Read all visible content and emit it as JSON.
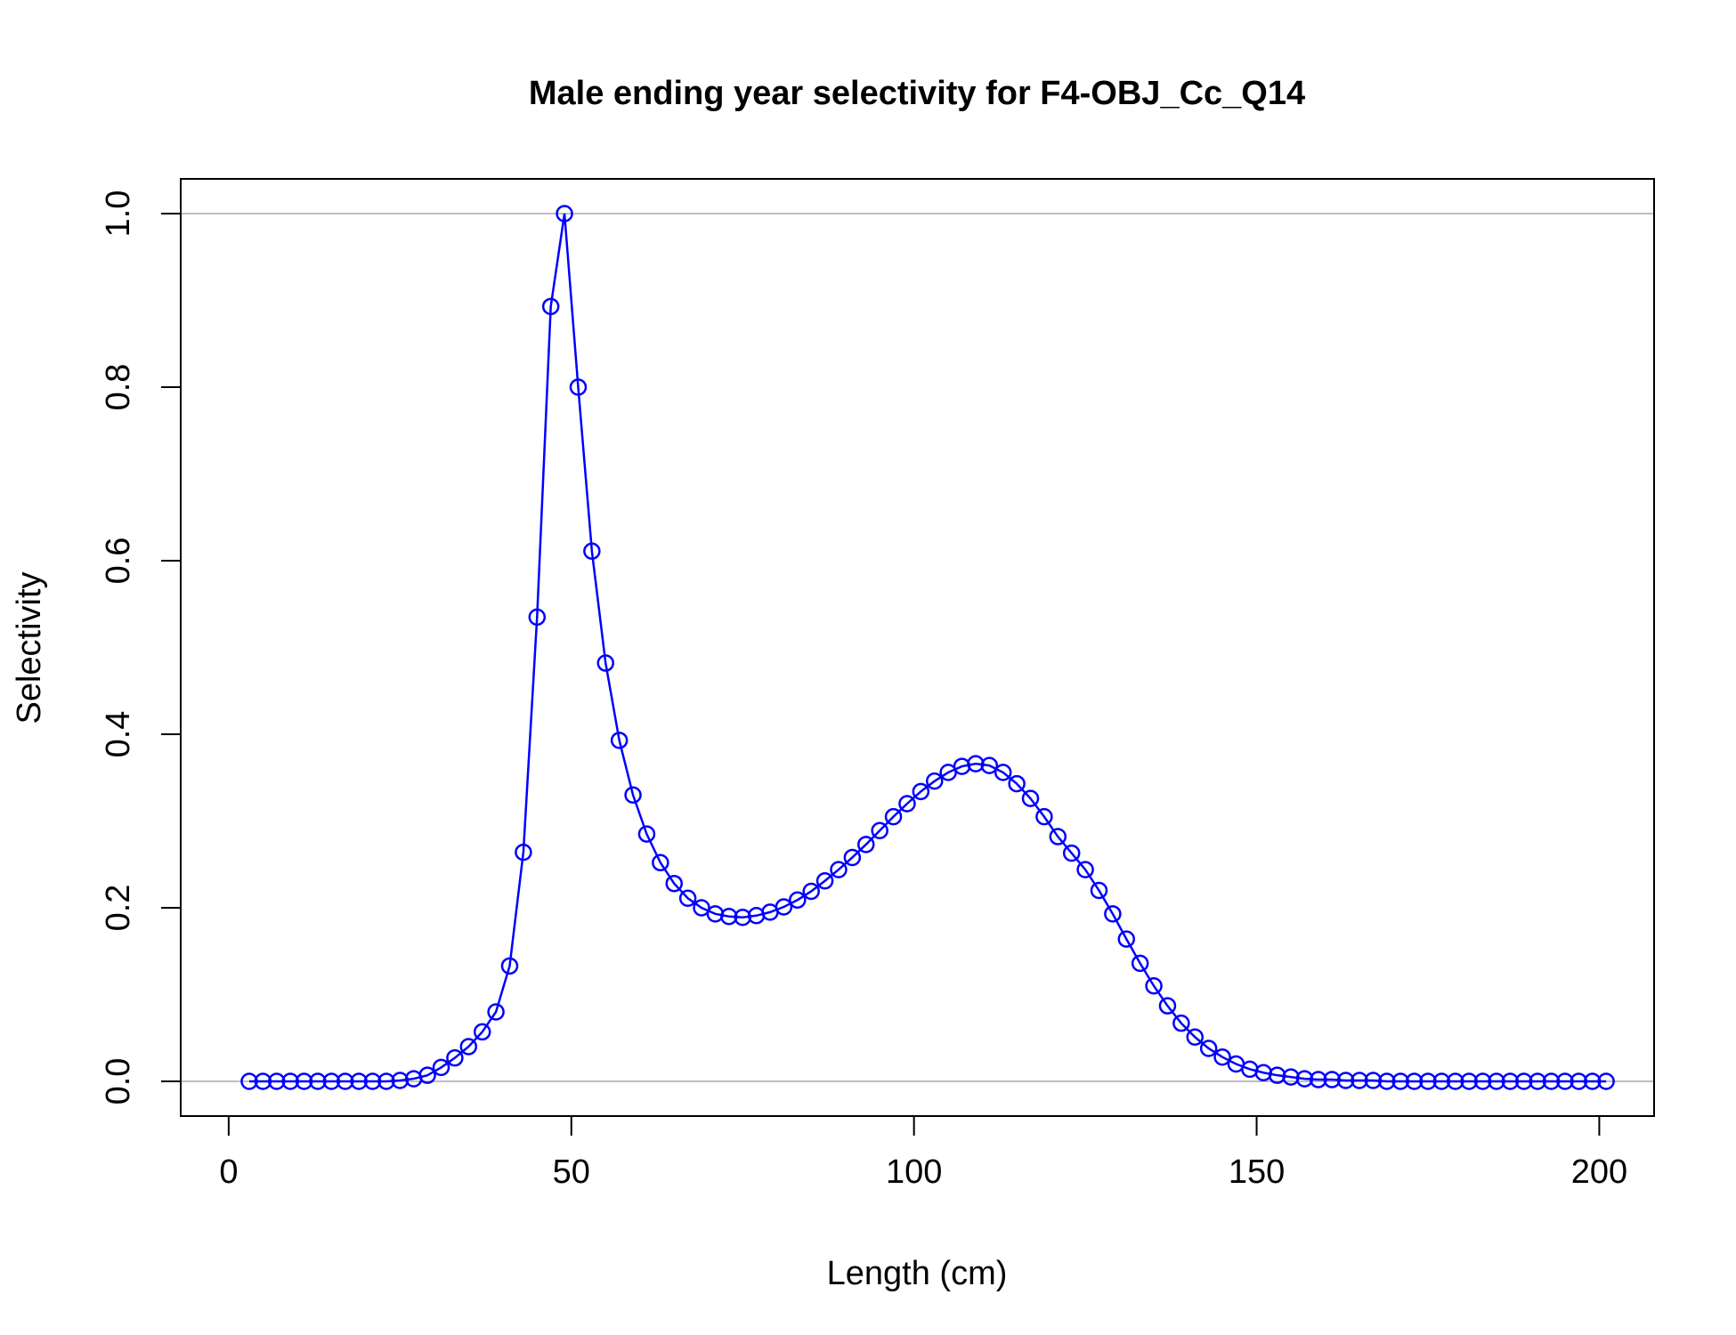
{
  "chart_data": {
    "type": "line",
    "title": "Male ending year selectivity for F4-OBJ_Cc_Q14",
    "xlabel": "Length (cm)",
    "ylabel": "Selectivity",
    "xlim": [
      -7,
      208
    ],
    "ylim": [
      -0.04,
      1.04
    ],
    "xticks": [
      "0",
      "50",
      "100",
      "150",
      "200"
    ],
    "xtick_values": [
      0,
      50,
      100,
      150,
      200
    ],
    "yticks": [
      "0.0",
      "0.2",
      "0.4",
      "0.6",
      "0.8",
      "1.0"
    ],
    "ytick_values": [
      0,
      0.2,
      0.4,
      0.6,
      0.8,
      1.0
    ],
    "reference_lines_y": [
      0,
      1
    ],
    "reference_line_color": "#bebebe",
    "grid": false,
    "series": [
      {
        "color": "#0000ff",
        "marker": "open-circle",
        "x": [
          3,
          5,
          7,
          9,
          11,
          13,
          15,
          17,
          19,
          21,
          23,
          25,
          27,
          29,
          31,
          33,
          35,
          37,
          39,
          41,
          43,
          45,
          47,
          49,
          51,
          53,
          55,
          57,
          59,
          61,
          63,
          65,
          67,
          69,
          71,
          73,
          75,
          77,
          79,
          81,
          83,
          85,
          87,
          89,
          91,
          93,
          95,
          97,
          99,
          101,
          103,
          105,
          107,
          109,
          111,
          113,
          115,
          117,
          119,
          121,
          123,
          125,
          127,
          129,
          131,
          133,
          135,
          137,
          139,
          141,
          143,
          145,
          147,
          149,
          151,
          153,
          155,
          157,
          159,
          161,
          163,
          165,
          167,
          169,
          171,
          173,
          175,
          177,
          179,
          181,
          183,
          185,
          187,
          189,
          191,
          193,
          195,
          197,
          199,
          201
        ],
        "y": [
          0,
          0,
          0,
          0,
          0,
          0,
          0,
          0,
          0,
          0,
          0,
          0.001,
          0.003,
          0.007,
          0.016,
          0.027,
          0.04,
          0.057,
          0.08,
          0.133,
          0.264,
          0.535,
          0.893,
          1.0,
          0.8,
          0.611,
          0.482,
          0.393,
          0.33,
          0.285,
          0.252,
          0.228,
          0.211,
          0.2,
          0.193,
          0.19,
          0.189,
          0.191,
          0.195,
          0.201,
          0.209,
          0.219,
          0.231,
          0.244,
          0.258,
          0.273,
          0.289,
          0.305,
          0.32,
          0.334,
          0.346,
          0.356,
          0.363,
          0.366,
          0.364,
          0.356,
          0.343,
          0.326,
          0.305,
          0.282,
          0.263,
          0.244,
          0.22,
          0.193,
          0.164,
          0.136,
          0.11,
          0.087,
          0.067,
          0.051,
          0.038,
          0.028,
          0.02,
          0.014,
          0.01,
          0.007,
          0.005,
          0.003,
          0.002,
          0.002,
          0.001,
          0.001,
          0.001,
          0,
          0,
          0,
          0,
          0,
          0,
          0,
          0,
          0,
          0,
          0,
          0,
          0,
          0,
          0,
          0,
          0
        ]
      }
    ]
  }
}
